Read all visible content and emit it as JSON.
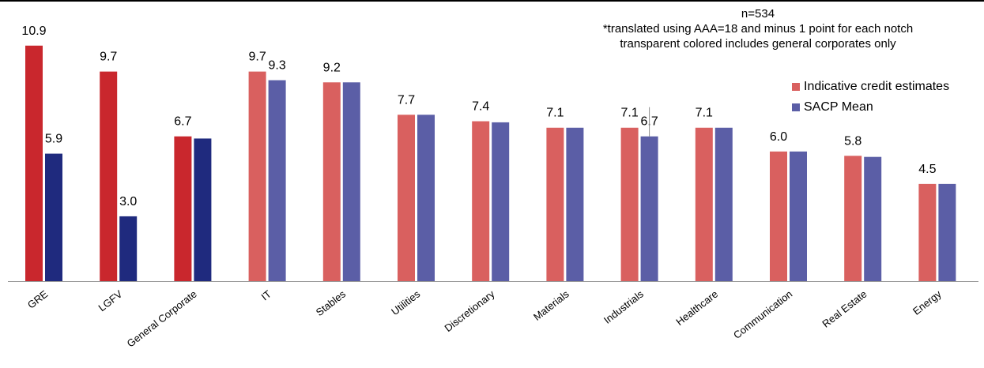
{
  "chart_data": {
    "type": "bar",
    "categories": [
      "GRE",
      "LGFV",
      "General Corporate",
      "IT",
      "Stables",
      "Utilities",
      "Discretionary",
      "Materials",
      "Industrials",
      "Healthcare",
      "Communication",
      "Real Estate",
      "Energy"
    ],
    "series": [
      {
        "name": "Indicative credit estimates",
        "values": [
          10.9,
          9.7,
          6.7,
          9.7,
          9.2,
          7.7,
          7.4,
          7.1,
          7.1,
          7.1,
          6.0,
          5.8,
          4.5
        ],
        "labels": [
          "10.9",
          "9.7",
          "6.7",
          "9.7",
          "9.2",
          "7.7",
          "7.4",
          "7.1",
          "7.1",
          "7.1",
          "6.0",
          "5.8",
          "4.5"
        ]
      },
      {
        "name": "SACP Mean",
        "values": [
          5.9,
          3.0,
          6.6,
          9.3,
          9.2,
          7.7,
          7.35,
          7.1,
          6.7,
          7.1,
          6.0,
          5.75,
          4.5
        ],
        "labels": [
          "5.9",
          "3.0",
          "",
          "9.3",
          "",
          "",
          "",
          "",
          "6.7",
          "",
          "",
          "",
          ""
        ]
      }
    ],
    "ylim": [
      0,
      11.55
    ],
    "grid": false,
    "legend_position": "top-right",
    "annotations": [
      "n=534",
      "*translated using AAA=18 and minus 1 point for each notch",
      "transparent colored includes general corporates only"
    ],
    "colors": {
      "primary_solid": [
        "#c9272d",
        "#1f2a7e"
      ],
      "primary_transparent": [
        "#d9605f",
        "#5b5ea6"
      ],
      "legend": [
        "#d9605f",
        "#5b5ea6"
      ],
      "axis": "#999999",
      "connector": "#8c8c8c"
    },
    "solid_categories_count": 3
  }
}
